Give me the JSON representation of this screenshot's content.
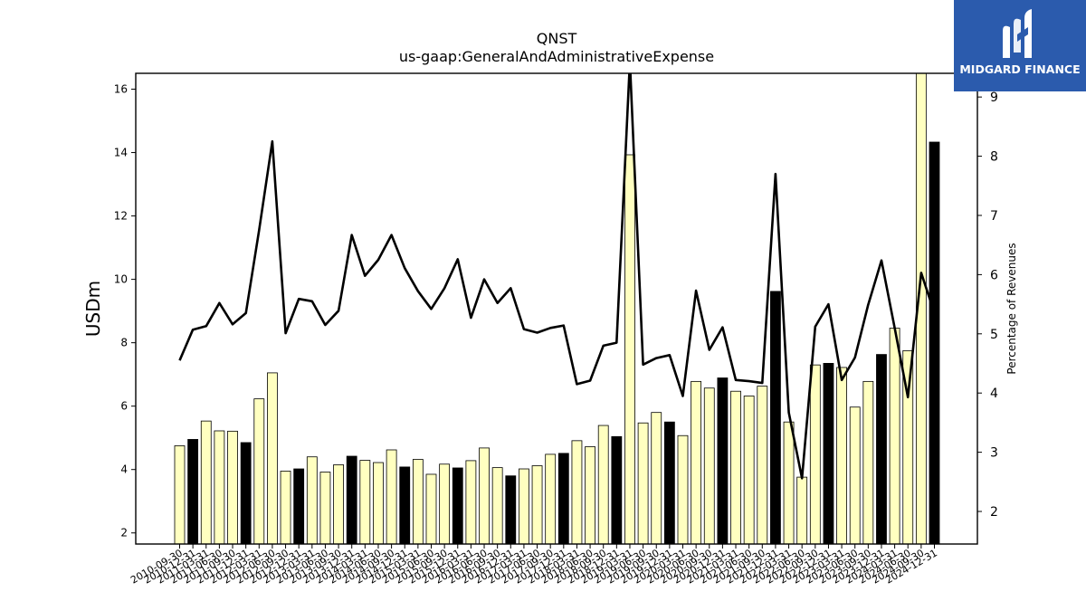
{
  "chart_data": {
    "type": "bar",
    "title": "QNST",
    "subtitle": "us-gaap:GeneralAndAdministrativeExpense",
    "ylabel": "USDm",
    "y2label": "Percentage of Revenues",
    "ylim": [
      1.65,
      16.5
    ],
    "y2lim": [
      1.45,
      9.4
    ],
    "yticks": [
      2,
      4,
      6,
      8,
      10,
      12,
      14,
      16
    ],
    "y2ticks": [
      2,
      3,
      4,
      5,
      6,
      7,
      8,
      9
    ],
    "grid": false,
    "categories": [
      "2010-09-30",
      "2010-12-31",
      "2011-03-31",
      "2011-06-30",
      "2011-09-30",
      "2011-12-31",
      "2012-03-31",
      "2012-06-30",
      "2012-09-30",
      "2012-12-31",
      "2013-03-31",
      "2013-06-30",
      "2013-09-30",
      "2013-12-31",
      "2014-03-31",
      "2014-06-30",
      "2014-09-30",
      "2014-12-31",
      "2015-03-31",
      "2015-06-30",
      "2015-09-30",
      "2015-12-31",
      "2016-03-31",
      "2016-06-30",
      "2016-09-30",
      "2016-12-31",
      "2017-03-31",
      "2017-06-30",
      "2017-09-30",
      "2017-12-31",
      "2018-03-31",
      "2018-06-30",
      "2018-09-30",
      "2018-12-31",
      "2019-03-31",
      "2019-06-30",
      "2019-09-30",
      "2019-12-31",
      "2020-03-31",
      "2020-06-30",
      "2020-09-30",
      "2020-12-31",
      "2021-03-31",
      "2021-06-30",
      "2021-09-30",
      "2021-12-31",
      "2022-03-31",
      "2022-06-30",
      "2022-09-30",
      "2022-12-31",
      "2023-03-31",
      "2023-06-30",
      "2023-09-30",
      "2023-12-31",
      "2024-03-31",
      "2024-06-30",
      "2024-09-30",
      "2024-12-31"
    ],
    "quarterly_color": "#ffffc0",
    "annual_color": "#000000",
    "line_color": "#000000",
    "series": [
      {
        "kind": "bar",
        "values": [
          4.75,
          4.95,
          5.53,
          5.22,
          5.21,
          4.85,
          6.23,
          7.05,
          3.95,
          4.02,
          4.4,
          3.92,
          4.15,
          4.42,
          4.29,
          4.22,
          4.62,
          4.08,
          4.32,
          3.85,
          4.17,
          4.05,
          4.28,
          4.68,
          4.06,
          3.8,
          4.02,
          4.12,
          4.48,
          4.51,
          4.91,
          4.72,
          5.39,
          5.04,
          13.93,
          5.47,
          5.8,
          5.5,
          5.07,
          6.78,
          6.57,
          6.89,
          6.47,
          6.32,
          6.63,
          9.62,
          5.5,
          3.76,
          7.3,
          7.35,
          7.22,
          5.97,
          6.78,
          7.63,
          8.46,
          7.75,
          16.5,
          14.33
        ],
        "annual": [
          false,
          true,
          false,
          false,
          false,
          true,
          false,
          false,
          false,
          true,
          false,
          false,
          false,
          true,
          false,
          false,
          false,
          true,
          false,
          false,
          false,
          true,
          false,
          false,
          false,
          true,
          false,
          false,
          false,
          true,
          false,
          false,
          false,
          true,
          false,
          false,
          false,
          true,
          false,
          false,
          false,
          true,
          false,
          false,
          false,
          true,
          false,
          false,
          false,
          true,
          false,
          false,
          false,
          true,
          false,
          false,
          false,
          true
        ]
      },
      {
        "kind": "line",
        "axis": "right",
        "values": [
          4.55,
          5.07,
          5.13,
          5.52,
          5.16,
          5.35,
          6.75,
          8.25,
          5.01,
          5.59,
          5.55,
          5.15,
          5.39,
          6.67,
          5.98,
          6.25,
          6.67,
          6.11,
          5.72,
          5.42,
          5.77,
          6.26,
          5.27,
          5.92,
          5.52,
          5.77,
          5.08,
          5.02,
          5.1,
          5.14,
          4.15,
          4.21,
          4.8,
          4.85,
          9.6,
          4.48,
          4.59,
          4.64,
          3.95,
          5.73,
          4.73,
          5.11,
          4.22,
          4.2,
          4.17,
          7.7,
          3.67,
          2.56,
          5.12,
          5.5,
          4.22,
          4.6,
          5.49,
          6.24,
          5.1,
          3.93,
          6.03,
          5.35
        ]
      }
    ]
  },
  "logo": {
    "text": "MIDGARD FINANCE",
    "icon": "midgard-logo-icon",
    "bg_color": "#2b5bad"
  }
}
